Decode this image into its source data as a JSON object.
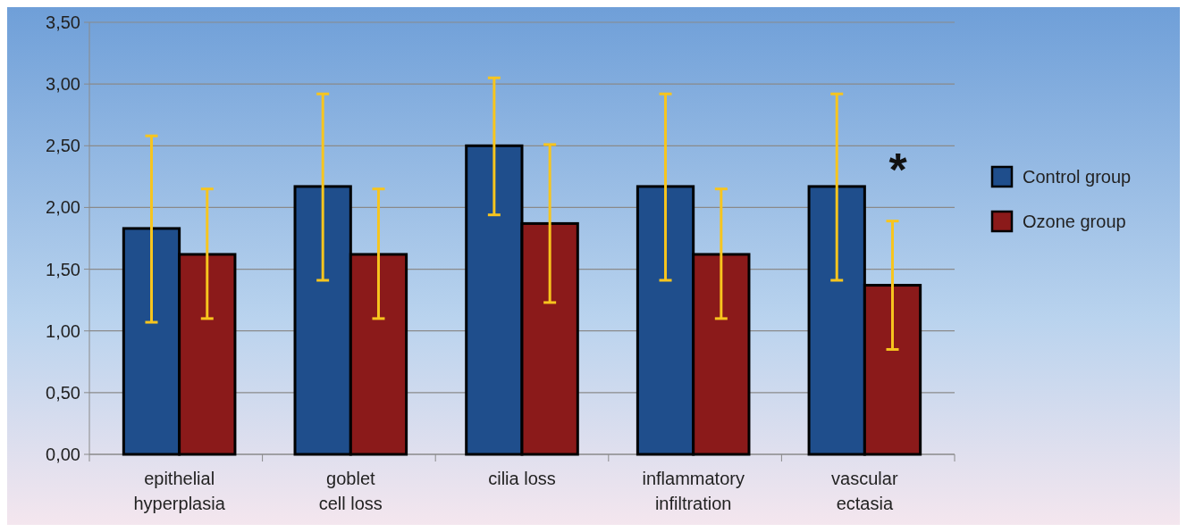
{
  "chart_data": {
    "type": "bar",
    "categories": [
      "epithelial\nhyperplasia",
      "goblet\ncell loss",
      "cilia loss",
      "inflammatory\ninfiltration",
      "vascular\nectasia"
    ],
    "series": [
      {
        "name": "Control group",
        "color": "#1f4e8c",
        "values": [
          1.83,
          2.17,
          2.5,
          2.17,
          2.17
        ],
        "errors": [
          [
            1.07,
            2.58
          ],
          [
            1.41,
            2.92
          ],
          [
            1.94,
            3.05
          ],
          [
            1.41,
            2.92
          ],
          [
            1.41,
            2.92
          ]
        ]
      },
      {
        "name": "Ozone group",
        "color": "#8b1a1a",
        "values": [
          1.62,
          1.62,
          1.87,
          1.62,
          1.37
        ],
        "errors": [
          [
            1.1,
            2.15
          ],
          [
            1.1,
            2.15
          ],
          [
            1.23,
            2.51
          ],
          [
            1.1,
            2.15
          ],
          [
            0.85,
            1.89
          ]
        ]
      }
    ],
    "ylim": [
      0,
      3.5
    ],
    "yticks": [
      {
        "value": 0,
        "label": "0,00"
      },
      {
        "value": 0.5,
        "label": "0,50"
      },
      {
        "value": 1,
        "label": "1,00"
      },
      {
        "value": 1.5,
        "label": "1,50"
      },
      {
        "value": 2,
        "label": "2,00"
      },
      {
        "value": 2.5,
        "label": "2,50"
      },
      {
        "value": 3,
        "label": "3,00"
      },
      {
        "value": 3.5,
        "label": "3,50"
      }
    ],
    "grid": "y",
    "legend": "right",
    "annotations": [
      "*"
    ]
  }
}
